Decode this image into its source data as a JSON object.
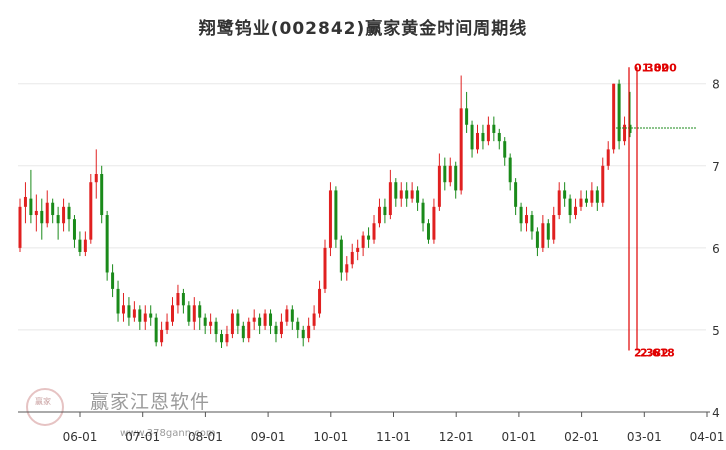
{
  "chart_data": {
    "type": "candlestick",
    "title": "翔鹭钨业(002842)赢家黄金时间周期线",
    "ylim": [
      4,
      8.35
    ],
    "y_ticks": [
      "8",
      "7",
      "6",
      "5",
      "4"
    ],
    "x_ticks": [
      "06-01",
      "07-01",
      "08-01",
      "09-01",
      "10-01",
      "11-01",
      "12-01",
      "01-01",
      "02-01",
      "03-01",
      "04-01"
    ],
    "grid": "horizontal",
    "colors": {
      "up": "#e02020",
      "down": "#1a8a1a",
      "annotation": "#e00000",
      "price_line": "#1a8a1a"
    },
    "price_line": 7.46,
    "cycle_lines": {
      "start_label": "0.382",
      "start_label_overlap": "1.000",
      "end_label": "2.382",
      "end_label_overlap": "2.618",
      "top_value": 8.2,
      "bottom_value": 4.75
    },
    "series": [
      {
        "o": 6.0,
        "c": 6.5,
        "h": 6.6,
        "l": 5.95
      },
      {
        "o": 6.5,
        "c": 6.62,
        "h": 6.8,
        "l": 6.3
      },
      {
        "o": 6.6,
        "c": 6.4,
        "h": 6.95,
        "l": 6.3
      },
      {
        "o": 6.4,
        "c": 6.45,
        "h": 6.65,
        "l": 6.2
      },
      {
        "o": 6.45,
        "c": 6.3,
        "h": 6.6,
        "l": 6.1
      },
      {
        "o": 6.3,
        "c": 6.55,
        "h": 6.7,
        "l": 6.25
      },
      {
        "o": 6.55,
        "c": 6.4,
        "h": 6.6,
        "l": 6.3
      },
      {
        "o": 6.4,
        "c": 6.3,
        "h": 6.5,
        "l": 6.1
      },
      {
        "o": 6.3,
        "c": 6.5,
        "h": 6.6,
        "l": 6.2
      },
      {
        "o": 6.5,
        "c": 6.35,
        "h": 6.55,
        "l": 6.2
      },
      {
        "o": 6.35,
        "c": 6.1,
        "h": 6.4,
        "l": 6.0
      },
      {
        "o": 6.1,
        "c": 5.95,
        "h": 6.2,
        "l": 5.9
      },
      {
        "o": 5.95,
        "c": 6.1,
        "h": 6.2,
        "l": 5.9
      },
      {
        "o": 6.1,
        "c": 6.8,
        "h": 6.9,
        "l": 6.05
      },
      {
        "o": 6.8,
        "c": 6.9,
        "h": 7.2,
        "l": 6.6
      },
      {
        "o": 6.9,
        "c": 6.4,
        "h": 7.0,
        "l": 6.3
      },
      {
        "o": 6.4,
        "c": 5.7,
        "h": 6.45,
        "l": 5.6
      },
      {
        "o": 5.7,
        "c": 5.5,
        "h": 5.8,
        "l": 5.4
      },
      {
        "o": 5.5,
        "c": 5.2,
        "h": 5.6,
        "l": 5.1
      },
      {
        "o": 5.2,
        "c": 5.3,
        "h": 5.45,
        "l": 5.1
      },
      {
        "o": 5.3,
        "c": 5.15,
        "h": 5.4,
        "l": 5.05
      },
      {
        "o": 5.15,
        "c": 5.25,
        "h": 5.35,
        "l": 5.1
      },
      {
        "o": 5.25,
        "c": 5.1,
        "h": 5.3,
        "l": 5.0
      },
      {
        "o": 5.1,
        "c": 5.2,
        "h": 5.3,
        "l": 5.0
      },
      {
        "o": 5.2,
        "c": 5.15,
        "h": 5.3,
        "l": 5.05
      },
      {
        "o": 5.15,
        "c": 4.85,
        "h": 5.2,
        "l": 4.8
      },
      {
        "o": 4.85,
        "c": 5.0,
        "h": 5.1,
        "l": 4.8
      },
      {
        "o": 5.0,
        "c": 5.1,
        "h": 5.2,
        "l": 4.95
      },
      {
        "o": 5.1,
        "c": 5.3,
        "h": 5.4,
        "l": 5.05
      },
      {
        "o": 5.3,
        "c": 5.45,
        "h": 5.55,
        "l": 5.2
      },
      {
        "o": 5.45,
        "c": 5.3,
        "h": 5.5,
        "l": 5.2
      },
      {
        "o": 5.3,
        "c": 5.1,
        "h": 5.35,
        "l": 5.05
      },
      {
        "o": 5.1,
        "c": 5.3,
        "h": 5.4,
        "l": 5.0
      },
      {
        "o": 5.3,
        "c": 5.15,
        "h": 5.35,
        "l": 5.0
      },
      {
        "o": 5.15,
        "c": 5.05,
        "h": 5.2,
        "l": 4.95
      },
      {
        "o": 5.05,
        "c": 5.1,
        "h": 5.2,
        "l": 4.95
      },
      {
        "o": 5.1,
        "c": 4.95,
        "h": 5.15,
        "l": 4.85
      },
      {
        "o": 4.95,
        "c": 4.85,
        "h": 5.0,
        "l": 4.78
      },
      {
        "o": 4.85,
        "c": 4.95,
        "h": 5.05,
        "l": 4.8
      },
      {
        "o": 4.95,
        "c": 5.2,
        "h": 5.25,
        "l": 4.9
      },
      {
        "o": 5.2,
        "c": 5.05,
        "h": 5.25,
        "l": 4.95
      },
      {
        "o": 5.05,
        "c": 4.9,
        "h": 5.1,
        "l": 4.85
      },
      {
        "o": 4.9,
        "c": 5.1,
        "h": 5.15,
        "l": 4.85
      },
      {
        "o": 5.1,
        "c": 5.15,
        "h": 5.25,
        "l": 5.0
      },
      {
        "o": 5.15,
        "c": 5.05,
        "h": 5.2,
        "l": 4.95
      },
      {
        "o": 5.05,
        "c": 5.2,
        "h": 5.25,
        "l": 5.0
      },
      {
        "o": 5.2,
        "c": 5.05,
        "h": 5.25,
        "l": 4.95
      },
      {
        "o": 5.05,
        "c": 4.95,
        "h": 5.1,
        "l": 4.85
      },
      {
        "o": 4.95,
        "c": 5.1,
        "h": 5.2,
        "l": 4.9
      },
      {
        "o": 5.1,
        "c": 5.25,
        "h": 5.3,
        "l": 5.05
      },
      {
        "o": 5.25,
        "c": 5.1,
        "h": 5.3,
        "l": 5.0
      },
      {
        "o": 5.1,
        "c": 5.0,
        "h": 5.15,
        "l": 4.9
      },
      {
        "o": 5.0,
        "c": 4.9,
        "h": 5.05,
        "l": 4.8
      },
      {
        "o": 4.9,
        "c": 5.05,
        "h": 5.15,
        "l": 4.85
      },
      {
        "o": 5.05,
        "c": 5.2,
        "h": 5.3,
        "l": 5.0
      },
      {
        "o": 5.2,
        "c": 5.5,
        "h": 5.6,
        "l": 5.15
      },
      {
        "o": 5.5,
        "c": 6.0,
        "h": 6.1,
        "l": 5.45
      },
      {
        "o": 6.0,
        "c": 6.7,
        "h": 6.8,
        "l": 5.9
      },
      {
        "o": 6.7,
        "c": 6.1,
        "h": 6.75,
        "l": 6.0
      },
      {
        "o": 6.1,
        "c": 5.7,
        "h": 6.15,
        "l": 5.6
      },
      {
        "o": 5.7,
        "c": 5.8,
        "h": 5.9,
        "l": 5.6
      },
      {
        "o": 5.8,
        "c": 5.95,
        "h": 6.05,
        "l": 5.75
      },
      {
        "o": 5.95,
        "c": 6.0,
        "h": 6.1,
        "l": 5.85
      },
      {
        "o": 6.0,
        "c": 6.15,
        "h": 6.2,
        "l": 5.9
      },
      {
        "o": 6.15,
        "c": 6.1,
        "h": 6.25,
        "l": 6.0
      },
      {
        "o": 6.1,
        "c": 6.3,
        "h": 6.4,
        "l": 6.05
      },
      {
        "o": 6.3,
        "c": 6.5,
        "h": 6.6,
        "l": 6.25
      },
      {
        "o": 6.5,
        "c": 6.4,
        "h": 6.6,
        "l": 6.3
      },
      {
        "o": 6.4,
        "c": 6.8,
        "h": 6.95,
        "l": 6.35
      },
      {
        "o": 6.8,
        "c": 6.6,
        "h": 6.85,
        "l": 6.5
      },
      {
        "o": 6.6,
        "c": 6.7,
        "h": 6.8,
        "l": 6.5
      },
      {
        "o": 6.7,
        "c": 6.6,
        "h": 6.8,
        "l": 6.5
      },
      {
        "o": 6.6,
        "c": 6.7,
        "h": 6.8,
        "l": 6.55
      },
      {
        "o": 6.7,
        "c": 6.55,
        "h": 6.75,
        "l": 6.45
      },
      {
        "o": 6.55,
        "c": 6.3,
        "h": 6.6,
        "l": 6.2
      },
      {
        "o": 6.3,
        "c": 6.1,
        "h": 6.35,
        "l": 6.05
      },
      {
        "o": 6.1,
        "c": 6.5,
        "h": 6.6,
        "l": 6.05
      },
      {
        "o": 6.5,
        "c": 7.0,
        "h": 7.15,
        "l": 6.45
      },
      {
        "o": 7.0,
        "c": 6.8,
        "h": 7.1,
        "l": 6.7
      },
      {
        "o": 6.8,
        "c": 7.0,
        "h": 7.1,
        "l": 6.75
      },
      {
        "o": 7.0,
        "c": 6.7,
        "h": 7.05,
        "l": 6.6
      },
      {
        "o": 6.7,
        "c": 7.7,
        "h": 8.1,
        "l": 6.65
      },
      {
        "o": 7.7,
        "c": 7.5,
        "h": 7.9,
        "l": 7.4
      },
      {
        "o": 7.5,
        "c": 7.2,
        "h": 7.55,
        "l": 7.1
      },
      {
        "o": 7.2,
        "c": 7.4,
        "h": 7.5,
        "l": 7.15
      },
      {
        "o": 7.4,
        "c": 7.3,
        "h": 7.5,
        "l": 7.2
      },
      {
        "o": 7.3,
        "c": 7.5,
        "h": 7.6,
        "l": 7.25
      },
      {
        "o": 7.5,
        "c": 7.4,
        "h": 7.6,
        "l": 7.3
      },
      {
        "o": 7.4,
        "c": 7.3,
        "h": 7.45,
        "l": 7.2
      },
      {
        "o": 7.3,
        "c": 7.1,
        "h": 7.35,
        "l": 7.0
      },
      {
        "o": 7.1,
        "c": 6.8,
        "h": 7.15,
        "l": 6.7
      },
      {
        "o": 6.8,
        "c": 6.5,
        "h": 6.85,
        "l": 6.4
      },
      {
        "o": 6.5,
        "c": 6.3,
        "h": 6.55,
        "l": 6.2
      },
      {
        "o": 6.3,
        "c": 6.4,
        "h": 6.5,
        "l": 6.2
      },
      {
        "o": 6.4,
        "c": 6.2,
        "h": 6.45,
        "l": 6.1
      },
      {
        "o": 6.2,
        "c": 6.0,
        "h": 6.25,
        "l": 5.9
      },
      {
        "o": 6.0,
        "c": 6.3,
        "h": 6.4,
        "l": 5.95
      },
      {
        "o": 6.3,
        "c": 6.1,
        "h": 6.35,
        "l": 6.0
      },
      {
        "o": 6.1,
        "c": 6.4,
        "h": 6.5,
        "l": 6.05
      },
      {
        "o": 6.4,
        "c": 6.7,
        "h": 6.8,
        "l": 6.35
      },
      {
        "o": 6.7,
        "c": 6.6,
        "h": 6.8,
        "l": 6.5
      },
      {
        "o": 6.6,
        "c": 6.4,
        "h": 6.65,
        "l": 6.3
      },
      {
        "o": 6.4,
        "c": 6.5,
        "h": 6.6,
        "l": 6.35
      },
      {
        "o": 6.5,
        "c": 6.6,
        "h": 6.7,
        "l": 6.45
      },
      {
        "o": 6.6,
        "c": 6.55,
        "h": 6.7,
        "l": 6.5
      },
      {
        "o": 6.55,
        "c": 6.7,
        "h": 6.8,
        "l": 6.5
      },
      {
        "o": 6.7,
        "c": 6.55,
        "h": 6.75,
        "l": 6.45
      },
      {
        "o": 6.55,
        "c": 7.0,
        "h": 7.1,
        "l": 6.5
      },
      {
        "o": 7.0,
        "c": 7.2,
        "h": 7.3,
        "l": 6.95
      },
      {
        "o": 7.2,
        "c": 8.0,
        "h": 8.0,
        "l": 7.15
      },
      {
        "o": 8.0,
        "c": 7.3,
        "h": 8.05,
        "l": 7.2
      },
      {
        "o": 7.3,
        "c": 7.5,
        "h": 7.6,
        "l": 7.25
      },
      {
        "o": 7.5,
        "c": 7.4,
        "h": 7.9,
        "l": 7.35
      }
    ]
  },
  "watermark": {
    "brand": "赢家江恩软件",
    "url": "www.378gann.com",
    "logo_text": "赢家"
  }
}
